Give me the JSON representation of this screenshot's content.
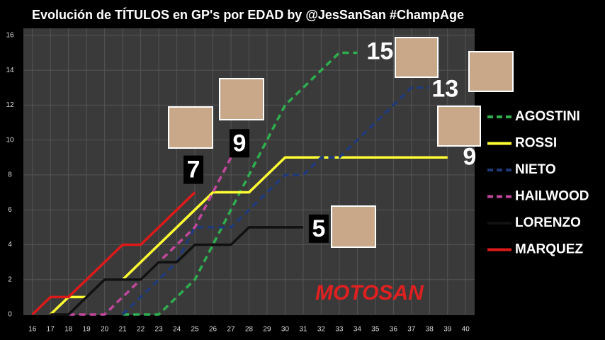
{
  "chart_data": {
    "type": "line",
    "title": "Evolución de TÍTULOS en GP's por EDAD by @JesSanSan #ChampAge",
    "x": [
      16,
      17,
      18,
      19,
      20,
      21,
      22,
      23,
      24,
      25,
      26,
      27,
      28,
      29,
      30,
      31,
      32,
      33,
      34,
      35,
      36,
      37,
      38,
      39,
      40
    ],
    "series": [
      {
        "name": "AGOSTINI",
        "color": "#2eae4e",
        "dashed": true,
        "values": [
          null,
          null,
          null,
          null,
          null,
          0,
          0,
          0,
          1,
          2,
          4,
          6,
          8,
          10,
          12,
          13,
          14,
          15,
          15,
          null,
          null,
          null,
          null,
          null,
          null
        ]
      },
      {
        "name": "ROSSI",
        "color": "#ffff33",
        "dashed": false,
        "values": [
          null,
          0,
          1,
          1,
          null,
          2,
          3,
          4,
          5,
          6,
          7,
          7,
          7,
          8,
          9,
          9,
          9,
          9,
          9,
          9,
          9,
          9,
          9,
          9,
          null
        ]
      },
      {
        "name": "NIETO",
        "color": "#1f3a7a",
        "dashed": true,
        "values": [
          null,
          null,
          null,
          null,
          null,
          0,
          1,
          2,
          3,
          5,
          5,
          5,
          6,
          7,
          8,
          8,
          9,
          9,
          10,
          11,
          12,
          13,
          13,
          null,
          null
        ]
      },
      {
        "name": "HAILWOOD",
        "color": "#c0479b",
        "dashed": true,
        "values": [
          null,
          null,
          0,
          0,
          0,
          1,
          2,
          3,
          4,
          5,
          7,
          9,
          null,
          null,
          null,
          null,
          null,
          null,
          null,
          null,
          null,
          null,
          null,
          null,
          null
        ]
      },
      {
        "name": "LORENZO",
        "color": "#111111",
        "dashed": false,
        "values": [
          null,
          0,
          0,
          1,
          2,
          2,
          2,
          3,
          3,
          4,
          4,
          4,
          5,
          5,
          5,
          5,
          null,
          null,
          null,
          null,
          null,
          null,
          null,
          null,
          null
        ]
      },
      {
        "name": "MARQUEZ",
        "color": "#dd1a1a",
        "dashed": false,
        "values": [
          0,
          1,
          1,
          2,
          3,
          4,
          4,
          5,
          6,
          7,
          null,
          null,
          null,
          null,
          null,
          null,
          null,
          null,
          null,
          null,
          null,
          null,
          null,
          null,
          null
        ]
      }
    ],
    "xlim": [
      15.5,
      40.5
    ],
    "ylim": [
      0,
      16.4
    ],
    "xticks": [
      16,
      17,
      18,
      19,
      20,
      21,
      22,
      23,
      24,
      25,
      26,
      27,
      28,
      29,
      30,
      31,
      32,
      33,
      34,
      35,
      36,
      37,
      38,
      39,
      40
    ],
    "yticks": [
      0,
      2,
      4,
      6,
      8,
      10,
      12,
      14,
      16
    ],
    "grid": true,
    "legend": "right",
    "logo": "MOTOSAN"
  }
}
